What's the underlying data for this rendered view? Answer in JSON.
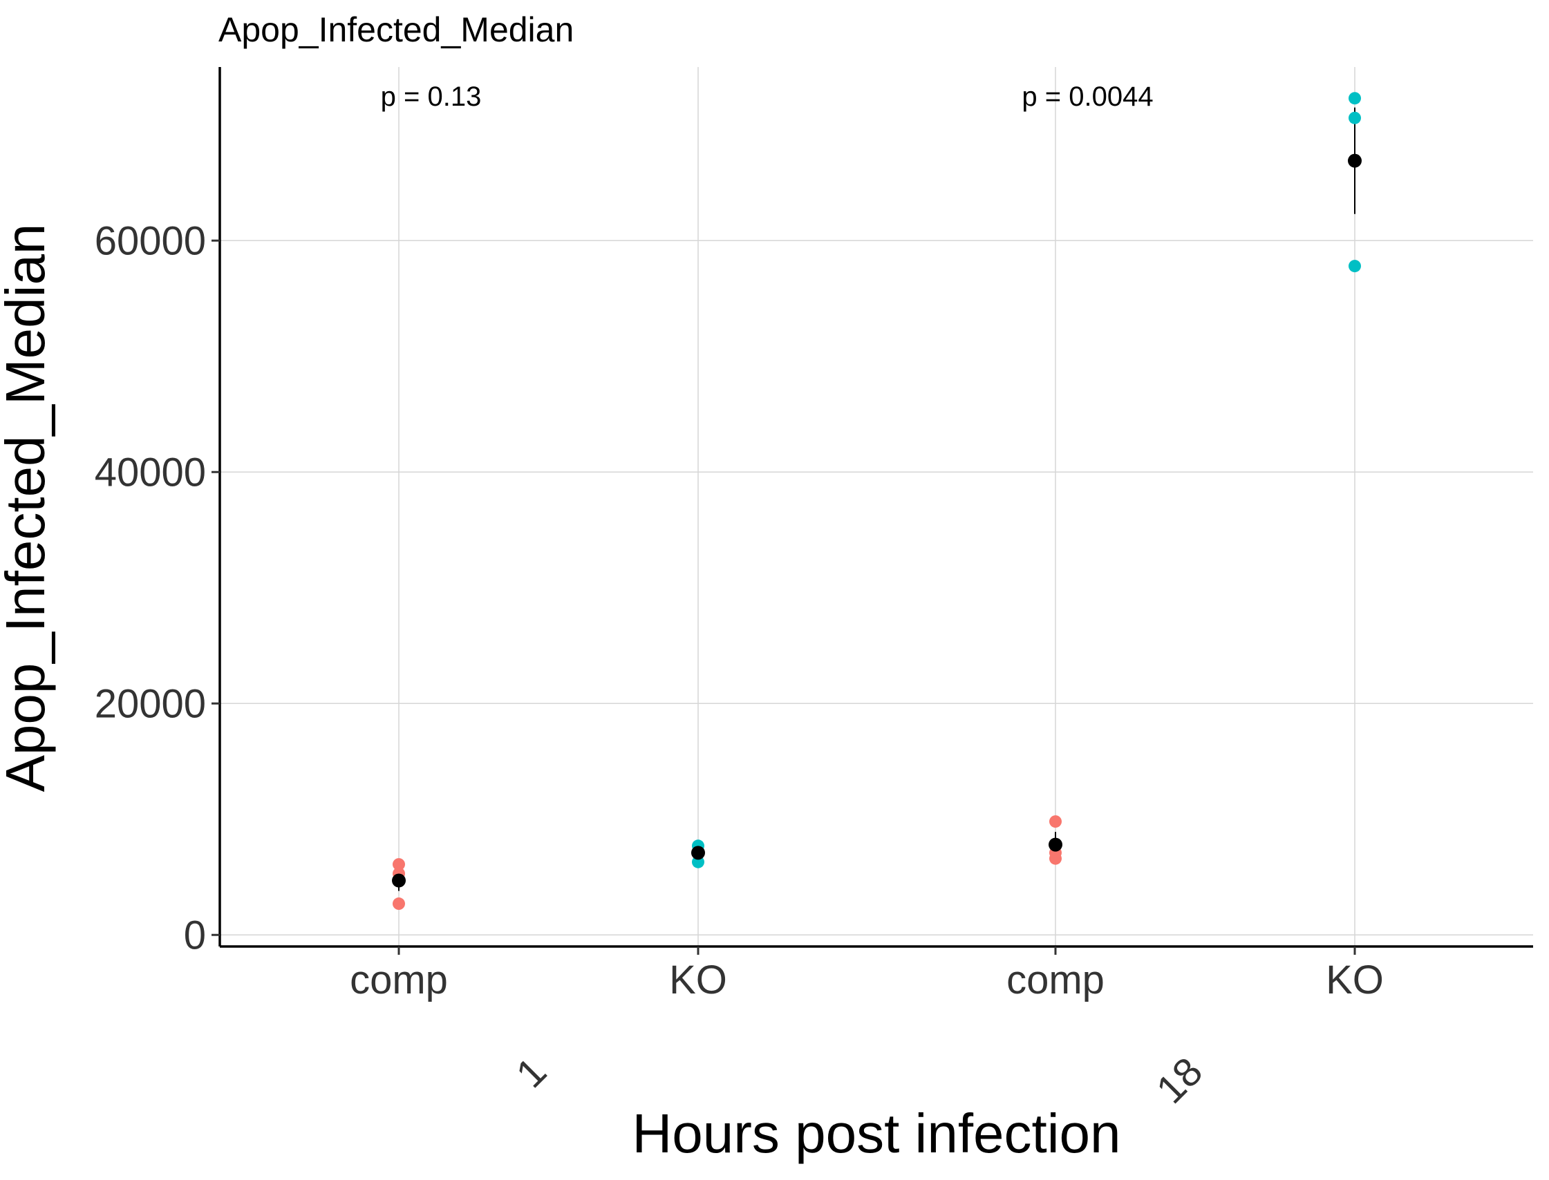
{
  "chart_data": {
    "type": "scatter",
    "title": "Apop_Infected_Median",
    "xlabel": "Hours post infection",
    "ylabel": "Apop_Infected_Median",
    "ylim": [
      -1000,
      75000
    ],
    "yticks": [
      0,
      20000,
      40000,
      60000
    ],
    "ytick_labels": [
      "0",
      "20000",
      "40000",
      "60000"
    ],
    "grid": true,
    "legend": "none",
    "groups": [
      {
        "hours": "1",
        "categories": [
          {
            "label": "comp",
            "color": "#F8766D",
            "points": [
              6100,
              5300,
              2700
            ],
            "mean": 4700,
            "error": [
              3800,
              5600
            ]
          },
          {
            "label": "KO",
            "color": "#00BFC4",
            "points": [
              7700,
              6300,
              7200
            ],
            "mean": 7100,
            "error": [
              6700,
              7500
            ]
          }
        ],
        "annotation": "p = 0.13"
      },
      {
        "hours": "18",
        "categories": [
          {
            "label": "comp",
            "color": "#F8766D",
            "points": [
              9800,
              6600,
              7100
            ],
            "mean": 7800,
            "error": [
              6900,
              8900
            ]
          },
          {
            "label": "KO",
            "color": "#00BFC4",
            "points": [
              72300,
              70600,
              57800
            ],
            "mean": 66900,
            "error": [
              62300,
              71500
            ]
          }
        ],
        "annotation": "p = 0.0044"
      }
    ],
    "summary_color": "#000000"
  }
}
